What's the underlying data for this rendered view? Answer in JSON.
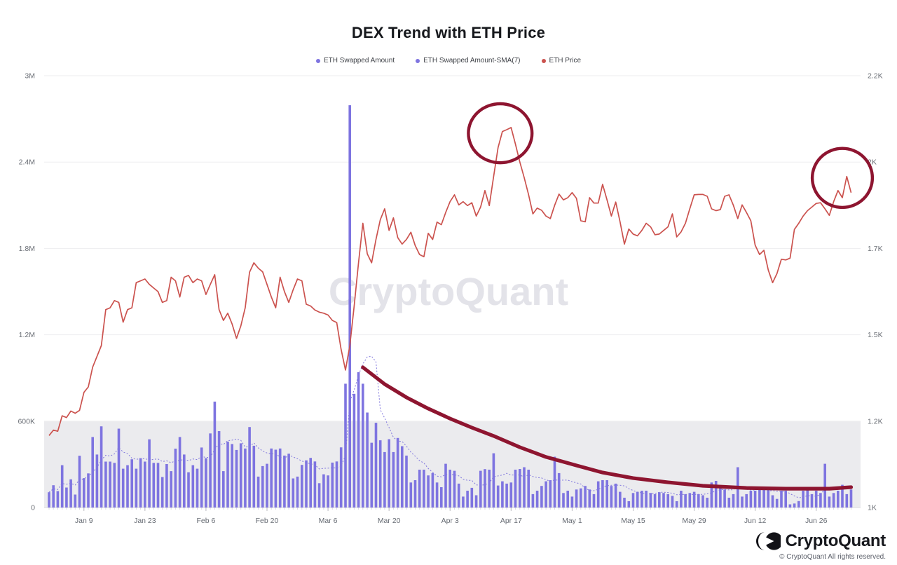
{
  "title": "DEX Trend with ETH Price",
  "watermark": "CryptoQuant",
  "legend": {
    "items": [
      {
        "label": "ETH Swapped Amount",
        "color": "#7e74e0"
      },
      {
        "label": "ETH Swapped Amount-SMA(7)",
        "color": "#7e74e0"
      },
      {
        "label": "ETH Price",
        "color": "#cb524e"
      }
    ]
  },
  "footer": {
    "brand": "CryptoQuant",
    "copyright": "© CryptoQuant All rights reserved."
  },
  "chart_data": {
    "type": "bar+line combo, daily data Jan 1 - Jul 4",
    "title": "DEX Trend with ETH Price",
    "x_axis": {
      "days": 185,
      "tick_labels": [
        "Jan 9",
        "Jan 23",
        "Feb 6",
        "Feb 20",
        "Mar 6",
        "Mar 20",
        "Apr 3",
        "Apr 17",
        "May 1",
        "May 15",
        "May 29",
        "Jun 12",
        "Jun 26"
      ],
      "tick_day_indices": [
        8,
        22,
        36,
        50,
        64,
        78,
        92,
        106,
        120,
        134,
        148,
        162,
        176
      ]
    },
    "y_axis_left": {
      "labels_bottom_to_top": [
        "0",
        "600K",
        "1.2M",
        "1.8M",
        "2.4M",
        "3M"
      ],
      "min": 0,
      "max_thousands": 3000,
      "applies_to": "ETH Swapped Amount"
    },
    "y_axis_right": {
      "labels_bottom_to_top": [
        "1K",
        "1.2K",
        "1.5K",
        "1.7K",
        "2K",
        "2.2K"
      ],
      "min": 1000,
      "max": 2200,
      "applies_to": "ETH Price"
    },
    "shaded_band": {
      "from_thousands": 0,
      "to_thousands": 600,
      "color": "#ebebee"
    },
    "series": [
      {
        "name": "ETH Swapped Amount",
        "type": "bar",
        "axis": "left",
        "unit": "thousands",
        "color": "#7e74e0",
        "values": [
          106,
          155,
          114,
          294,
          139,
          196,
          90,
          360,
          204,
          237,
          490,
          368,
          564,
          319,
          319,
          310,
          548,
          270,
          294,
          335,
          270,
          343,
          319,
          474,
          310,
          310,
          212,
          302,
          253,
          409,
          490,
          368,
          245,
          294,
          270,
          417,
          343,
          515,
          736,
          531,
          253,
          458,
          441,
          400,
          446,
          410,
          559,
          429,
          215,
          288,
          304,
          410,
          402,
          410,
          361,
          374,
          202,
          215,
          296,
          328,
          345,
          320,
          169,
          231,
          223,
          312,
          320,
          418,
          860,
          2795,
          790,
          940,
          860,
          660,
          450,
          589,
          467,
          385,
          475,
          385,
          483,
          426,
          361,
          174,
          190,
          263,
          263,
          223,
          239,
          174,
          141,
          304,
          263,
          255,
          166,
          76,
          117,
          137,
          85,
          255,
          267,
          263,
          377,
          153,
          182,
          166,
          174,
          263,
          268,
          280,
          263,
          93,
          117,
          150,
          182,
          190,
          353,
          239,
          101,
          117,
          76,
          125,
          133,
          150,
          125,
          93,
          182,
          190,
          190,
          150,
          166,
          109,
          68,
          44,
          101,
          109,
          117,
          117,
          101,
          93,
          106,
          101,
          93,
          81,
          44,
          117,
          93,
          101,
          109,
          93,
          85,
          68,
          174,
          185,
          150,
          125,
          68,
          93,
          280,
          76,
          93,
          117,
          117,
          133,
          141,
          133,
          85,
          60,
          117,
          117,
          22,
          28,
          45,
          117,
          133,
          93,
          117,
          101,
          304,
          76,
          101,
          117,
          158,
          93,
          125
        ]
      },
      {
        "name": "ETH Swapped Amount-SMA(7)",
        "type": "line",
        "style": "dotted",
        "axis": "left",
        "unit": "thousands",
        "color": "#8177dd",
        "derived": "7-day simple moving average of ETH Swapped Amount (computed from bar values)"
      },
      {
        "name": "ETH Price",
        "type": "line",
        "axis": "right",
        "unit": "USD",
        "color": "#cb524e",
        "values": [
          1200,
          1215,
          1212,
          1255,
          1250,
          1268,
          1262,
          1270,
          1320,
          1335,
          1390,
          1420,
          1450,
          1550,
          1555,
          1575,
          1570,
          1515,
          1550,
          1555,
          1625,
          1630,
          1635,
          1620,
          1610,
          1600,
          1570,
          1575,
          1640,
          1630,
          1585,
          1640,
          1645,
          1625,
          1635,
          1630,
          1592,
          1620,
          1647,
          1550,
          1520,
          1540,
          1510,
          1470,
          1505,
          1555,
          1654,
          1680,
          1665,
          1655,
          1620,
          1585,
          1555,
          1640,
          1600,
          1570,
          1605,
          1635,
          1630,
          1565,
          1560,
          1549,
          1543,
          1540,
          1535,
          1520,
          1514,
          1440,
          1382,
          1450,
          1560,
          1680,
          1790,
          1705,
          1680,
          1745,
          1800,
          1830,
          1770,
          1805,
          1750,
          1732,
          1745,
          1765,
          1728,
          1703,
          1697,
          1762,
          1745,
          1793,
          1786,
          1820,
          1850,
          1869,
          1841,
          1850,
          1839,
          1847,
          1810,
          1835,
          1881,
          1839,
          1920,
          2000,
          2045,
          2050,
          2056,
          2010,
          1960,
          1917,
          1870,
          1816,
          1832,
          1826,
          1810,
          1803,
          1840,
          1871,
          1855,
          1861,
          1875,
          1859,
          1797,
          1794,
          1861,
          1846,
          1846,
          1898,
          1855,
          1810,
          1849,
          1794,
          1732,
          1774,
          1760,
          1755,
          1770,
          1790,
          1780,
          1758,
          1760,
          1770,
          1780,
          1816,
          1752,
          1766,
          1790,
          1830,
          1869,
          1870,
          1870,
          1865,
          1830,
          1825,
          1828,
          1865,
          1869,
          1840,
          1803,
          1841,
          1820,
          1797,
          1729,
          1703,
          1715,
          1660,
          1625,
          1650,
          1690,
          1688,
          1693,
          1773,
          1790,
          1810,
          1825,
          1835,
          1845,
          1847,
          1830,
          1812,
          1850,
          1881,
          1861,
          1920,
          1875
        ]
      }
    ],
    "annotations": {
      "color": "#8e1530",
      "circles": [
        {
          "center_day_index": 103.5,
          "center_price": 2040,
          "radius_days": 7.3,
          "radius_price": 82,
          "meaning": "circled ETH price local top mid-April"
        },
        {
          "center_day_index": 182,
          "center_price": 1916,
          "radius_days": 6.9,
          "radius_price": 82,
          "meaning": "circled ETH price local top early July"
        }
      ],
      "decay_curve": {
        "meaning": "hand-drawn decaying trend of DEX swapped volume after the March spike",
        "points_day_index": [
          72,
          77,
          82,
          87,
          92,
          97,
          102,
          108,
          114,
          121,
          127,
          134,
          142,
          150,
          160,
          169,
          179,
          184
        ],
        "points_value_thousands": [
          974,
          857,
          765,
          687,
          618,
          555,
          497,
          419,
          351,
          292,
          243,
          204,
          175,
          151,
          136,
          131,
          131,
          141
        ]
      }
    },
    "grid": "horizontal gridlines only, 6 levels",
    "legend_position": "top center"
  }
}
